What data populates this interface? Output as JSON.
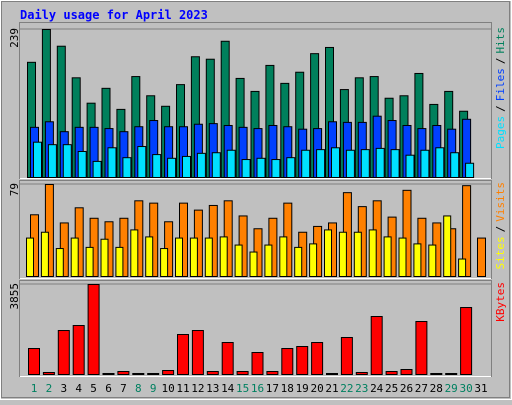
{
  "title": "Daily usage for April 2023",
  "days": [
    "1",
    "2",
    "3",
    "4",
    "5",
    "6",
    "7",
    "8",
    "9",
    "10",
    "11",
    "12",
    "13",
    "14",
    "15",
    "16",
    "17",
    "18",
    "19",
    "20",
    "21",
    "22",
    "23",
    "24",
    "25",
    "26",
    "27",
    "28",
    "29",
    "30",
    "31"
  ],
  "day_colors": [
    "#008060",
    "#008060",
    "#000000",
    "#000000",
    "#000000",
    "#000000",
    "#000000",
    "#008060",
    "#008060",
    "#000000",
    "#000000",
    "#000000",
    "#000000",
    "#000000",
    "#008060",
    "#008060",
    "#000000",
    "#000000",
    "#000000",
    "#000000",
    "#000000",
    "#008060",
    "#008060",
    "#000000",
    "#000000",
    "#000000",
    "#000000",
    "#000000",
    "#008060",
    "#008060",
    "#000000"
  ],
  "legend_separator": "/",
  "chart_data": [
    {
      "type": "bar",
      "ylim": [
        0,
        239
      ],
      "yticks": [
        239
      ],
      "series": [
        {
          "name": "Hits",
          "color": "#00805c",
          "values": [
            186,
            239,
            212,
            161,
            120,
            144,
            110,
            163,
            132,
            115,
            150,
            195,
            191,
            220,
            160,
            139,
            181,
            152,
            170,
            200,
            210,
            142,
            161,
            163,
            128,
            132,
            168,
            118,
            139,
            107,
            0
          ]
        },
        {
          "name": "Files",
          "color": "#0040ff",
          "values": [
            81,
            90,
            74,
            81,
            81,
            79,
            74,
            82,
            92,
            82,
            82,
            86,
            87,
            84,
            81,
            79,
            84,
            82,
            78,
            79,
            90,
            89,
            89,
            99,
            92,
            84,
            79,
            84,
            78,
            94,
            0
          ]
        },
        {
          "name": "Pages",
          "color": "#00e0ff",
          "values": [
            57,
            53,
            53,
            42,
            26,
            48,
            32,
            50,
            37,
            31,
            34,
            39,
            40,
            44,
            29,
            31,
            29,
            32,
            44,
            45,
            48,
            44,
            45,
            47,
            45,
            36,
            44,
            48,
            40,
            23,
            0
          ]
        }
      ]
    },
    {
      "type": "bar",
      "ylim": [
        0,
        79
      ],
      "yticks": [
        79
      ],
      "series": [
        {
          "name": "Visits",
          "color": "#ff8000",
          "values": [
            53,
            79,
            46,
            59,
            50,
            47,
            50,
            65,
            63,
            47,
            63,
            57,
            61,
            65,
            52,
            41,
            50,
            63,
            38,
            43,
            46,
            72,
            60,
            65,
            51,
            74,
            50,
            46,
            41,
            78,
            33
          ]
        },
        {
          "name": "Sites",
          "color": "#ffff00",
          "values": [
            33,
            38,
            24,
            33,
            25,
            32,
            25,
            40,
            34,
            24,
            33,
            33,
            33,
            34,
            27,
            21,
            27,
            34,
            25,
            28,
            40,
            38,
            38,
            40,
            34,
            33,
            28,
            27,
            52,
            15,
            0
          ]
        }
      ]
    },
    {
      "type": "bar",
      "ylim": [
        0,
        3855
      ],
      "yticks": [
        3855
      ],
      "series": [
        {
          "name": "KBytes",
          "color": "#ff0000",
          "values": [
            1113,
            86,
            1884,
            2098,
            3855,
            43,
            128,
            43,
            43,
            171,
            1713,
            1884,
            128,
            1370,
            128,
            942,
            128,
            1113,
            1199,
            1370,
            43,
            1585,
            86,
            2484,
            128,
            214,
            2270,
            43,
            43,
            2869,
            0
          ]
        }
      ]
    }
  ]
}
